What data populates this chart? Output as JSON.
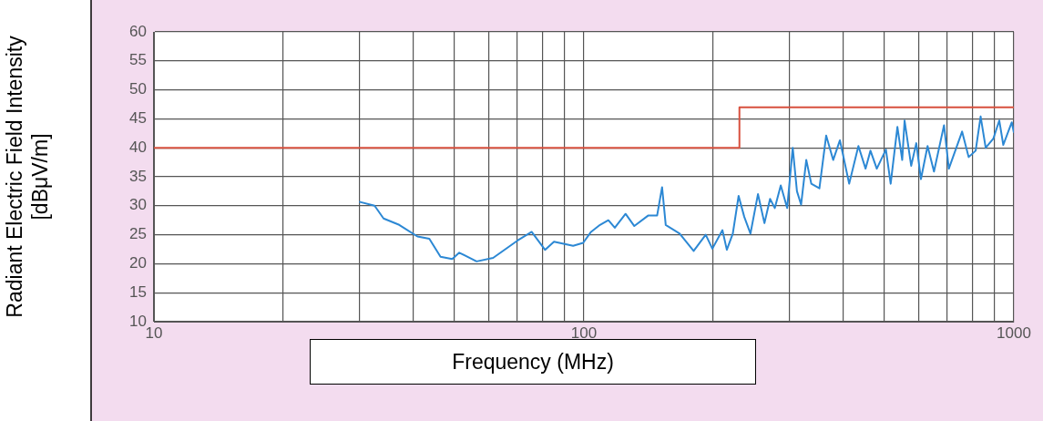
{
  "chart_data": {
    "type": "line",
    "xlabel": "Frequency (MHz)",
    "ylabel": "Radiant Electric Field Intensity [dBμV/m]",
    "log": "x",
    "grid": true,
    "legend": false,
    "marker": "none",
    "line_style": "solid",
    "xlim": [
      10,
      1000
    ],
    "ylim": [
      10,
      60
    ],
    "xticks": [
      10,
      {
        "value": 20,
        "label": null
      },
      {
        "value": 30,
        "label": null
      },
      {
        "value": 40,
        "label": null
      },
      {
        "value": 50,
        "label": null
      },
      {
        "value": 60,
        "label": null
      },
      {
        "value": 70,
        "label": null
      },
      {
        "value": 80,
        "label": null
      },
      {
        "value": 90,
        "label": null
      },
      100,
      {
        "value": 200,
        "label": null
      },
      {
        "value": 300,
        "label": null
      },
      {
        "value": 400,
        "label": null
      },
      {
        "value": 500,
        "label": null
      },
      {
        "value": 600,
        "label": null
      },
      {
        "value": 700,
        "label": null
      },
      {
        "value": 800,
        "label": null
      },
      {
        "value": 900,
        "label": null
      },
      1000
    ],
    "yticks": [
      10,
      15,
      20,
      25,
      30,
      35,
      40,
      45,
      50,
      55,
      60
    ],
    "series": [
      {
        "type": "step",
        "color": "#d8503e",
        "x": [
          10,
          230,
          1000
        ],
        "values": [
          40,
          47,
          47
        ]
      },
      {
        "type": "line",
        "color": "#2c88d4",
        "x": [
          30,
          32.6,
          34.2,
          37.2,
          41,
          43.7,
          46.4,
          49.4,
          51.3,
          56.3,
          61.5,
          70.1,
          75.6,
          81.2,
          85.2,
          94.4,
          99.6,
          103.9,
          109,
          114,
          118,
          125,
          131,
          141,
          148,
          152,
          155,
          167,
          180,
          192,
          199,
          210,
          215,
          222,
          229,
          236,
          244,
          254,
          263,
          271,
          278,
          287,
          297,
          306,
          313,
          320,
          329,
          338,
          353,
          366,
          380,
          394,
          414,
          435,
          452,
          464,
          480,
          504,
          517,
          536,
          550,
          557,
          577,
          593,
          608,
          630,
          652,
          688,
          706,
          758,
          785,
          815,
          837,
          860,
          896,
          925,
          945,
          989,
          1000
        ],
        "values": [
          30.7,
          30.0,
          27.8,
          26.7,
          24.7,
          24.3,
          21.2,
          20.8,
          21.9,
          20.4,
          21.0,
          24.0,
          25.5,
          22.4,
          23.8,
          23.1,
          23.6,
          25.5,
          26.7,
          27.5,
          26.2,
          28.6,
          26.5,
          28.3,
          28.3,
          33.2,
          26.7,
          25.2,
          22.2,
          25.0,
          22.6,
          25.8,
          22.4,
          25.2,
          31.7,
          28.1,
          25.2,
          32.0,
          27.0,
          31.2,
          29.6,
          33.5,
          29.6,
          40.0,
          32.5,
          30.2,
          37.9,
          33.8,
          33.0,
          42.1,
          37.9,
          41.3,
          33.8,
          40.3,
          36.4,
          39.5,
          36.4,
          39.7,
          33.8,
          43.6,
          37.9,
          44.7,
          36.9,
          40.8,
          34.6,
          40.3,
          35.9,
          43.9,
          36.4,
          42.8,
          38.4,
          39.5,
          45.4,
          40.0,
          41.6,
          44.7,
          40.5,
          44.4,
          42.6
        ]
      }
    ]
  }
}
